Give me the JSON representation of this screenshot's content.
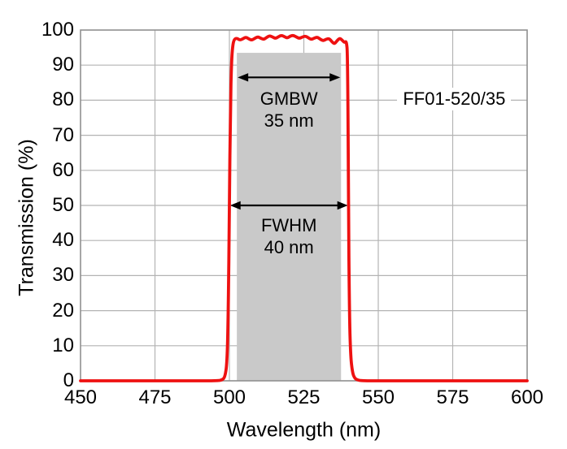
{
  "chart_data": {
    "type": "line",
    "title": "",
    "xlabel": "Wavelength (nm)",
    "ylabel": "Transmission (%)",
    "xlim": [
      450,
      600
    ],
    "ylim": [
      0,
      100
    ],
    "xticks": [
      450,
      475,
      500,
      525,
      550,
      575,
      600
    ],
    "yticks": [
      0,
      10,
      20,
      30,
      40,
      50,
      60,
      70,
      80,
      90,
      100
    ],
    "grid": true,
    "legend": "none",
    "series": [
      {
        "name": "FF01-520/35 bandpass transmission",
        "color": "#ee1111",
        "points": [
          [
            450,
            0
          ],
          [
            455,
            0
          ],
          [
            460,
            0
          ],
          [
            465,
            0
          ],
          [
            470,
            0
          ],
          [
            475,
            0
          ],
          [
            480,
            0
          ],
          [
            485,
            0
          ],
          [
            490,
            0
          ],
          [
            494,
            0
          ],
          [
            496,
            0.05
          ],
          [
            497.5,
            0.2
          ],
          [
            498.5,
            1
          ],
          [
            499.2,
            5
          ],
          [
            499.6,
            18
          ],
          [
            500,
            50
          ],
          [
            500.35,
            78
          ],
          [
            500.7,
            91
          ],
          [
            501.1,
            95.5
          ],
          [
            501.6,
            97.4
          ],
          [
            502.5,
            97.7
          ],
          [
            503.5,
            97.1
          ],
          [
            504.5,
            97.5
          ],
          [
            505.5,
            98.0
          ],
          [
            506.5,
            97.5
          ],
          [
            507.5,
            97.1
          ],
          [
            508.5,
            97.6
          ],
          [
            509.5,
            98.1
          ],
          [
            510.5,
            97.7
          ],
          [
            511.5,
            97.3
          ],
          [
            512.5,
            97.9
          ],
          [
            513.5,
            98.4
          ],
          [
            514.5,
            98.0
          ],
          [
            515.5,
            97.6
          ],
          [
            516.5,
            98.1
          ],
          [
            517.5,
            98.5
          ],
          [
            518.5,
            98.1
          ],
          [
            519.5,
            97.7
          ],
          [
            520.5,
            98.3
          ],
          [
            521.5,
            98.5
          ],
          [
            522.5,
            98.0
          ],
          [
            523.5,
            97.6
          ],
          [
            524.5,
            98.0
          ],
          [
            525.5,
            98.3
          ],
          [
            526.5,
            97.8
          ],
          [
            527.5,
            97.3
          ],
          [
            528.5,
            97.7
          ],
          [
            529.5,
            98.0
          ],
          [
            530.5,
            97.4
          ],
          [
            531.5,
            96.9
          ],
          [
            532.5,
            97.4
          ],
          [
            533.5,
            97.6
          ],
          [
            534.4,
            96.7
          ],
          [
            535.3,
            96.0
          ],
          [
            536.2,
            97.0
          ],
          [
            537.1,
            97.7
          ],
          [
            538,
            97.0
          ],
          [
            538.7,
            96.4
          ],
          [
            539.3,
            96.9
          ],
          [
            539.7,
            93
          ],
          [
            540,
            50
          ],
          [
            540.3,
            20
          ],
          [
            540.7,
            7
          ],
          [
            541.3,
            2.5
          ],
          [
            542,
            0.8
          ],
          [
            543,
            0.2
          ],
          [
            544.5,
            0.05
          ],
          [
            546,
            0
          ],
          [
            550,
            0
          ],
          [
            555,
            0
          ],
          [
            560,
            0
          ],
          [
            565,
            0
          ],
          [
            570,
            0
          ],
          [
            575,
            0
          ],
          [
            580,
            0
          ],
          [
            585,
            0
          ],
          [
            590,
            0
          ],
          [
            595,
            0
          ],
          [
            600,
            0
          ]
        ]
      }
    ],
    "band": {
      "label": "GMBW",
      "value": "35 nm",
      "x1": 502.5,
      "x2": 537.5,
      "top": 93.5,
      "arrow_y": 86.5,
      "label_y": 77.3,
      "label_x": 520
    },
    "fwhm": {
      "label": "FWHM",
      "value": "40 nm",
      "x1": 500.2,
      "x2": 539.8,
      "y": 50,
      "label_y": 41.2,
      "label_x": 520
    },
    "part_label": {
      "text": "FF01-520/35",
      "x": 575.5,
      "y": 80.3
    },
    "colors": {
      "curve": "#ee1111",
      "band_fill": "#c9c9c9",
      "grid": "#b3b3b3",
      "border": "#909090",
      "arrow": "#000000",
      "text": "#000000",
      "background": "#ffffff"
    }
  }
}
